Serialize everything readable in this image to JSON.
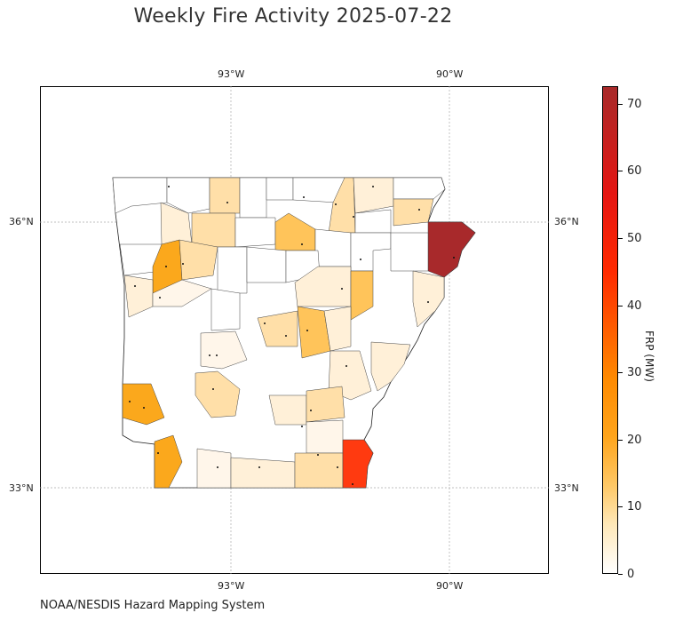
{
  "title": "Weekly Fire Activity 2025-07-22",
  "source": "NOAA/NESDIS Hazard Mapping System",
  "map": {
    "lon_labels_top": [
      "93°W",
      "90°W"
    ],
    "lon_labels_bottom": [
      "93°W",
      "90°W"
    ],
    "lat_labels_left": [
      "36°N",
      "33°N"
    ],
    "lat_labels_right": [
      "36°N",
      "33°N"
    ],
    "colors": {
      "max": "#a8292b",
      "high": "#ff3a10",
      "orange": "#fba81c",
      "medium": "#ffc45a",
      "light": "#ffdfa8",
      "pale": "#fff0d8",
      "faint": "#fff6ea",
      "none": "#ffffff"
    }
  },
  "colorbar": {
    "label": "FRP (MW)",
    "ticks": [
      "0",
      "10",
      "20",
      "30",
      "40",
      "50",
      "60",
      "70"
    ],
    "range": [
      0,
      72.5
    ]
  }
}
